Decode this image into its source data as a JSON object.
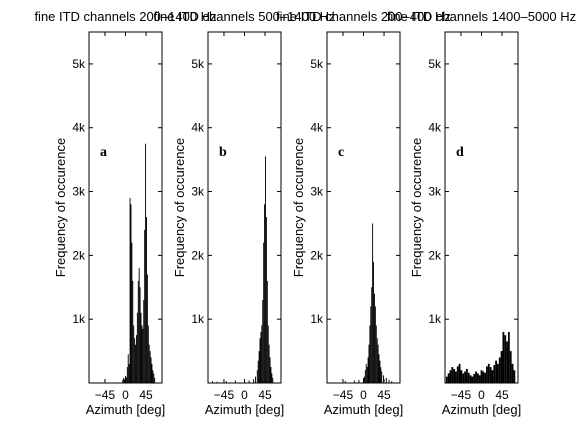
{
  "chart_data": [
    {
      "type": "bar",
      "panel_label": "a",
      "title": "fine ITD channels 200–1400 Hz",
      "xlabel": "Azimuth [deg]",
      "ylabel": "Frequency of occurence",
      "xlim": [
        -80,
        80
      ],
      "ylim": [
        0,
        5500
      ],
      "xticks": [
        -45,
        0,
        45
      ],
      "xtick_labels": [
        "−45",
        "0",
        "45"
      ],
      "yticks": [
        1000,
        2000,
        3000,
        4000,
        5000
      ],
      "ytick_labels": [
        "1k",
        "2k",
        "3k",
        "4k",
        "5k"
      ],
      "bin_width": 2,
      "x": [
        -6,
        -4,
        -2,
        0,
        2,
        4,
        6,
        8,
        10,
        12,
        14,
        16,
        18,
        20,
        22,
        24,
        26,
        28,
        30,
        32,
        34,
        36,
        38,
        40,
        42,
        44,
        46,
        48,
        50,
        52,
        54,
        56,
        58,
        60,
        62,
        64
      ],
      "values": [
        50,
        80,
        60,
        110,
        90,
        250,
        450,
        300,
        2900,
        2800,
        2200,
        1600,
        900,
        700,
        600,
        750,
        1100,
        1600,
        1800,
        1500,
        1100,
        900,
        850,
        1300,
        2400,
        3750,
        2600,
        1700,
        900,
        600,
        500,
        400,
        300,
        200,
        150,
        80
      ]
    },
    {
      "type": "bar",
      "panel_label": "b",
      "title": "fine ITD channels 500–1400 Hz",
      "xlabel": "Azimuth [deg]",
      "ylabel": "Frequency of occurence",
      "xlim": [
        -80,
        80
      ],
      "ylim": [
        0,
        5500
      ],
      "xticks": [
        -45,
        0,
        45
      ],
      "xtick_labels": [
        "−45",
        "0",
        "45"
      ],
      "yticks": [
        1000,
        2000,
        3000,
        4000,
        5000
      ],
      "ytick_labels": [
        "1k",
        "2k",
        "3k",
        "4k",
        "5k"
      ],
      "bin_width": 2,
      "x": [
        -70,
        -60,
        -40,
        -20,
        0,
        10,
        20,
        24,
        28,
        30,
        32,
        34,
        36,
        38,
        40,
        42,
        44,
        46,
        48,
        50,
        52,
        54,
        56,
        58,
        60,
        62
      ],
      "values": [
        30,
        20,
        30,
        40,
        30,
        40,
        60,
        100,
        200,
        350,
        500,
        700,
        800,
        900,
        1300,
        2200,
        2800,
        3550,
        2600,
        1600,
        900,
        600,
        400,
        250,
        150,
        80
      ]
    },
    {
      "type": "bar",
      "panel_label": "c",
      "title": "fine ITD channels 200–400 Hz",
      "xlabel": "Azimuth [deg]",
      "ylabel": "Frequency of occurence",
      "xlim": [
        -80,
        80
      ],
      "ylim": [
        0,
        5500
      ],
      "xticks": [
        -45,
        0,
        45
      ],
      "xtick_labels": [
        "−45",
        "0",
        "45"
      ],
      "yticks": [
        1000,
        2000,
        3000,
        4000,
        5000
      ],
      "ytick_labels": [
        "1k",
        "2k",
        "3k",
        "4k",
        "5k"
      ],
      "bin_width": 2,
      "x": [
        -40,
        -20,
        -10,
        0,
        2,
        4,
        6,
        8,
        10,
        12,
        14,
        16,
        18,
        20,
        22,
        24,
        26,
        28,
        30,
        32,
        34,
        36,
        38,
        40,
        44,
        50,
        56,
        62
      ],
      "values": [
        30,
        40,
        50,
        80,
        100,
        200,
        300,
        250,
        400,
        600,
        900,
        1200,
        1500,
        2500,
        1900,
        1400,
        1200,
        900,
        700,
        600,
        450,
        350,
        250,
        180,
        120,
        80,
        50,
        30
      ]
    },
    {
      "type": "bar",
      "panel_label": "d",
      "title": "fine ITD channels 1400–5000 Hz",
      "xlabel": "Azimuth [deg]",
      "ylabel": "Frequency of occurence",
      "xlim": [
        -80,
        80
      ],
      "ylim": [
        0,
        5500
      ],
      "xticks": [
        -45,
        0,
        45
      ],
      "xtick_labels": [
        "−45",
        "0",
        "45"
      ],
      "yticks": [
        1000,
        2000,
        3000,
        4000,
        5000
      ],
      "ytick_labels": [
        "1k",
        "2k",
        "3k",
        "4k",
        "5k"
      ],
      "bin_width": 4,
      "x": [
        -76,
        -72,
        -68,
        -64,
        -60,
        -56,
        -52,
        -48,
        -44,
        -40,
        -36,
        -32,
        -28,
        -24,
        -20,
        -16,
        -12,
        -8,
        -4,
        0,
        4,
        8,
        12,
        16,
        20,
        24,
        28,
        32,
        36,
        40,
        44,
        48,
        52,
        56,
        60,
        64,
        68,
        72
      ],
      "values": [
        100,
        150,
        200,
        250,
        220,
        180,
        260,
        300,
        200,
        150,
        180,
        220,
        160,
        120,
        100,
        140,
        180,
        150,
        120,
        200,
        180,
        160,
        260,
        300,
        250,
        200,
        280,
        350,
        300,
        400,
        500,
        800,
        750,
        650,
        800,
        500,
        300,
        200
      ]
    }
  ]
}
